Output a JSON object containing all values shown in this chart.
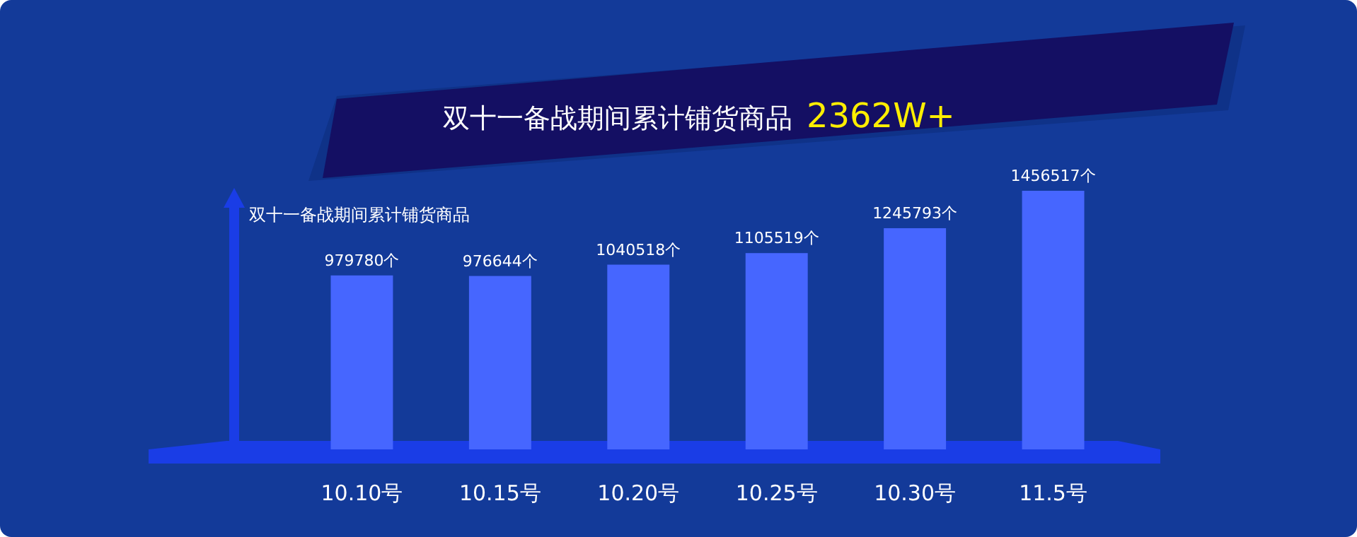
{
  "chart_data": {
    "type": "bar",
    "title": "双十一备战期间累计铺货商品",
    "subtitle": "2362W+",
    "ylabel": "双十一备战期间累计铺货商品",
    "categories": [
      "10.10号",
      "10.15号",
      "10.20号",
      "10.25号",
      "10.30号",
      "11.5号"
    ],
    "values": [
      979780,
      976644,
      1040518,
      1105519,
      1245793,
      1456517
    ],
    "value_labels": [
      "979780个",
      "976644个",
      "1040518个",
      "1105519个",
      "1245793个",
      "1456517个"
    ],
    "color": "#4666ff"
  }
}
